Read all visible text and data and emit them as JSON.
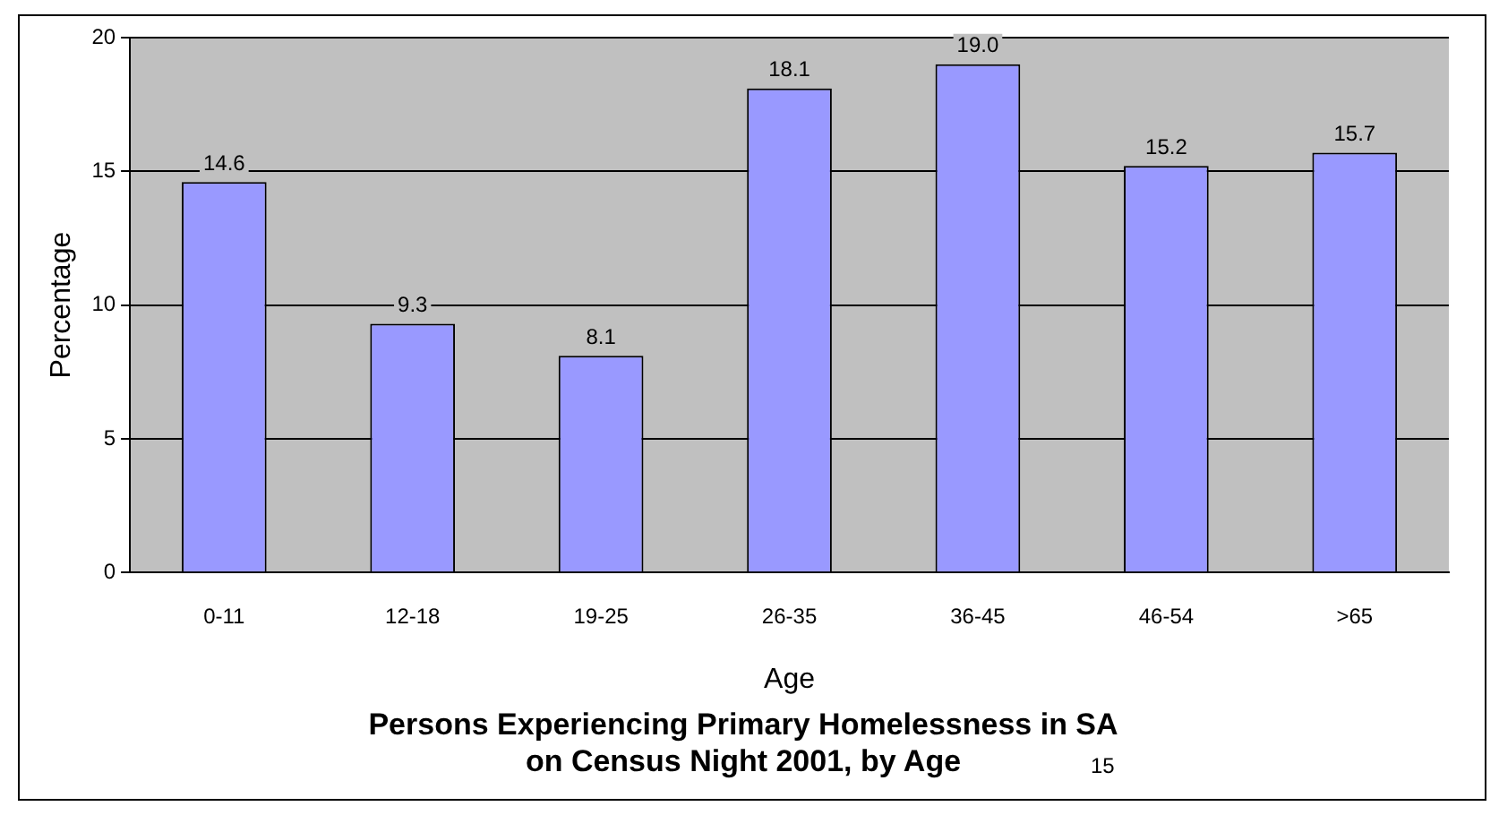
{
  "chart_data": {
    "type": "bar",
    "title": "Persons Experiencing Primary Homelessness in SA\non Census Night 2001, by Age",
    "xlabel": "Age",
    "ylabel": "Percentage",
    "categories": [
      "0-11",
      "12-18",
      "19-25",
      "26-35",
      "36-45",
      "46-54",
      ">65"
    ],
    "values": [
      14.6,
      9.3,
      8.1,
      18.1,
      19.0,
      15.2,
      15.7
    ],
    "value_labels": [
      "14.6",
      "9.3",
      "8.1",
      "18.1",
      "19.0",
      "15.2",
      "15.7"
    ],
    "color": "#9999ff",
    "ylim": [
      0,
      20
    ],
    "yticks": [
      0,
      5,
      10,
      15,
      20
    ],
    "grid": "y",
    "legend": false,
    "annotations": [
      "15"
    ]
  }
}
